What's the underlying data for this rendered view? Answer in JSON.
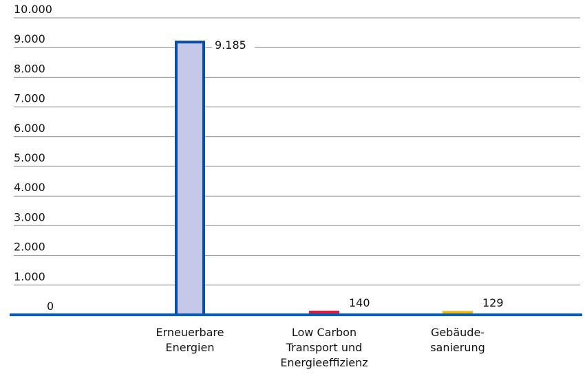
{
  "chart_data": {
    "type": "bar",
    "title": "",
    "xlabel": "",
    "ylabel": "",
    "ylim": [
      0,
      10000
    ],
    "y_ticks": [
      "0",
      "1.000",
      "2.000",
      "3.000",
      "4.000",
      "5.000",
      "6.000",
      "7.000",
      "8.000",
      "9.000",
      "10.000"
    ],
    "grid": true,
    "legend": "none",
    "categories": [
      [
        "Erneuerbare",
        "Energien"
      ],
      [
        "Low Carbon",
        "Transport und",
        "Energieeffizienz"
      ],
      [
        "Gebäude-",
        "sanierung"
      ]
    ],
    "values": [
      9185,
      140,
      129
    ],
    "value_labels": [
      "9.185",
      "140",
      "129"
    ],
    "bar_fills": [
      "#c5c8e8",
      "#d4213d",
      "#f2b800"
    ],
    "bar_outlines": [
      "#0a4ea3",
      "#d4213d",
      "#f2b800"
    ],
    "axis_color": "#0a5bb0"
  }
}
